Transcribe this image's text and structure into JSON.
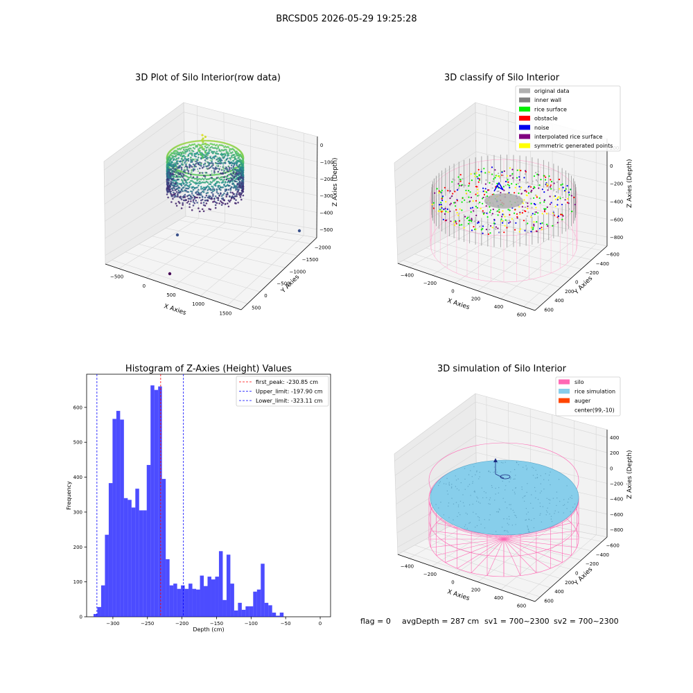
{
  "suptitle": "BRCSD05 2026-05-29 19:25:28",
  "footer": {
    "flag": "flag = 0",
    "avg": "avgDepth = 287 cm",
    "sv1": "sv1 = 700~2300",
    "sv2": "sv2 = 700~2300"
  },
  "chart_data": [
    {
      "type": "scatter",
      "title": "3D Plot of Silo Interior(row data)",
      "xlabel": "X Axies",
      "ylabel": "Y Axies",
      "zlabel": "Z Axies (Depth)",
      "x_ticks": [
        "−500",
        "0",
        "500",
        "1000",
        "1500"
      ],
      "y_ticks": [
        "500",
        "0",
        "−500",
        "−1000",
        "−1500",
        "−2000"
      ],
      "z_ticks": [
        "0",
        "−100",
        "−200",
        "−300",
        "−400",
        "−500"
      ],
      "xlim": [
        -650,
        1800
      ],
      "ylim": [
        -2050,
        700
      ],
      "zlim": [
        -520,
        20
      ],
      "colormap": "viridis",
      "outliers": [
        {
          "x": 450,
          "y": -300,
          "z": -500,
          "color": "#440154"
        },
        {
          "x": 300,
          "y": 100,
          "z": -300,
          "color": "#3b528b"
        },
        {
          "x": 1700,
          "y": 500,
          "z": -450,
          "color": "#3b528b"
        }
      ]
    },
    {
      "type": "scatter",
      "title": "3D classify of Silo Interior",
      "xlabel": "X Axies",
      "ylabel": "Y Axies",
      "zlabel": "Z Axies (Depth)",
      "x_ticks": [
        "−400",
        "−200",
        "0",
        "200",
        "400",
        "600"
      ],
      "y_ticks": [
        "600",
        "400",
        "200",
        "0",
        "−200",
        "−400",
        "−600"
      ],
      "z_ticks": [
        "200",
        "0",
        "−200",
        "−400",
        "−600",
        "−800"
      ],
      "legend": [
        {
          "label": "original data",
          "color": "#b0b0b0"
        },
        {
          "label": "inner wall",
          "color": "#808080"
        },
        {
          "label": "rice surface",
          "color": "#00ee00"
        },
        {
          "label": "obstacle",
          "color": "#ff0000"
        },
        {
          "label": "noise",
          "color": "#0000ee"
        },
        {
          "label": "interpolated rice surface",
          "color": "#800080"
        },
        {
          "label": "symmetric generated points",
          "color": "#ffff00"
        }
      ],
      "legend_loc": "top-right"
    },
    {
      "type": "bar",
      "title": "Histogram of Z-Axies (Height) Values",
      "xlabel": "Depth (cm)",
      "ylabel": "Frequency",
      "xlim": [
        -338,
        15
      ],
      "ylim": [
        0,
        695
      ],
      "x_ticks": [
        -300,
        -250,
        -200,
        -150,
        -100,
        -50,
        0
      ],
      "x_tick_labels": [
        "−300",
        "−250",
        "−200",
        "−150",
        "−100",
        "−50",
        "0"
      ],
      "y_ticks": [
        0,
        100,
        200,
        300,
        400,
        500,
        600
      ],
      "bin_start": -328,
      "bin_width": 5.5,
      "values": [
        8,
        28,
        90,
        235,
        383,
        567,
        590,
        565,
        340,
        335,
        313,
        367,
        305,
        305,
        435,
        663,
        650,
        660,
        395,
        165,
        90,
        95,
        80,
        90,
        80,
        95,
        80,
        78,
        118,
        88,
        115,
        107,
        115,
        188,
        48,
        178,
        95,
        18,
        40,
        20,
        30,
        30,
        72,
        78,
        152,
        40,
        33,
        12,
        3,
        12
      ],
      "color": "#0000ff",
      "lines": [
        {
          "label": "first_peak: -230.85 cm",
          "x": -230.85,
          "color": "#ff0000"
        },
        {
          "label": "Upper_limit: -197.90 cm",
          "x": -197.9,
          "color": "#0000ff"
        },
        {
          "label": "Lower_limit: -323.11 cm",
          "x": -323.11,
          "color": "#0000ff"
        }
      ],
      "legend_loc": "top-right"
    },
    {
      "type": "scatter",
      "title": "3D simulation of Silo Interior",
      "xlabel": "X Axies",
      "ylabel": "Y Axies",
      "zlabel": "Z Axies (Depth)",
      "x_ticks": [
        "−400",
        "−200",
        "0",
        "200",
        "400",
        "600"
      ],
      "y_ticks": [
        "600",
        "400",
        "200",
        "0",
        "−200",
        "−400",
        "−600"
      ],
      "z_ticks": [
        "400",
        "200",
        "0",
        "−200",
        "−400",
        "−600",
        "−800"
      ],
      "legend": [
        {
          "label": "silo",
          "color": "#ff69b4"
        },
        {
          "label": "rice simulation",
          "color": "#87ceeb"
        },
        {
          "label": "auger",
          "color": "#ff4500"
        },
        {
          "label": "center(99,-10)",
          "color": ""
        }
      ],
      "legend_loc": "top-right"
    }
  ]
}
